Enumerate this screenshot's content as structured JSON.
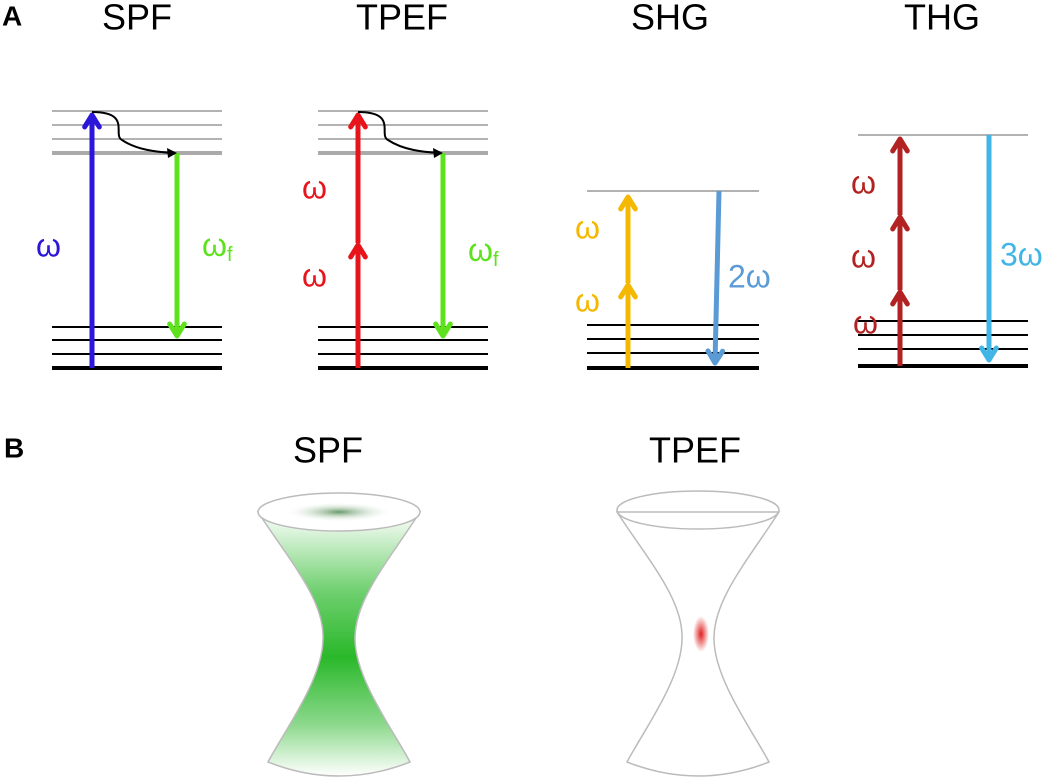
{
  "panels": [
    {
      "label": "A",
      "diagrams": [
        {
          "title": "SPF",
          "labels": [
            {
              "text": "ω"
            },
            {
              "text": "ω",
              "subscript": "f"
            }
          ]
        },
        {
          "title": "TPEF",
          "labels": [
            {
              "text": "ω"
            },
            {
              "text": "ω"
            },
            {
              "text": "ω",
              "subscript": "f"
            }
          ]
        },
        {
          "title": "SHG",
          "labels": [
            {
              "text": "ω"
            },
            {
              "text": "ω"
            },
            {
              "text": "2ω"
            }
          ]
        },
        {
          "title": "THG",
          "labels": [
            {
              "text": "ω"
            },
            {
              "text": "ω"
            },
            {
              "text": "ω"
            },
            {
              "text": "3ω"
            }
          ]
        }
      ]
    },
    {
      "label": "B",
      "diagrams": [
        {
          "title": "SPF"
        },
        {
          "title": "TPEF"
        }
      ]
    }
  ]
}
